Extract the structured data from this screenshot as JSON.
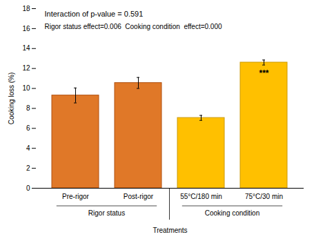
{
  "chart_data": {
    "type": "bar",
    "categories": [
      "Pre-rigor",
      "Post-rigor",
      "55°C/180 min",
      "75°C/30 min"
    ],
    "groups": [
      "Rigor status",
      "Rigor status",
      "Cooking condition",
      "Cooking condition"
    ],
    "values": [
      9.3,
      10.55,
      7.05,
      12.6
    ],
    "errors": [
      0.75,
      0.55,
      0.25,
      0.25
    ],
    "colors": [
      "#E07828",
      "#E07828",
      "#FFC000",
      "#FFC000"
    ],
    "edge_colors": [
      "#B05010",
      "#B05010",
      "#CC9900",
      "#CC9900"
    ],
    "bar_annotations": [
      null,
      null,
      null,
      "***"
    ],
    "annotations": [
      "Interaction of p-value = 0.591",
      "Rigor status effect=0.006  Cooking condition  effect=0.000"
    ],
    "ylim": [
      0,
      18
    ],
    "yticks": [
      0,
      2,
      4,
      6,
      8,
      10,
      12,
      14,
      16,
      18
    ],
    "ylabel": "Cooking loss (%)",
    "xlabel": "Treatments"
  }
}
